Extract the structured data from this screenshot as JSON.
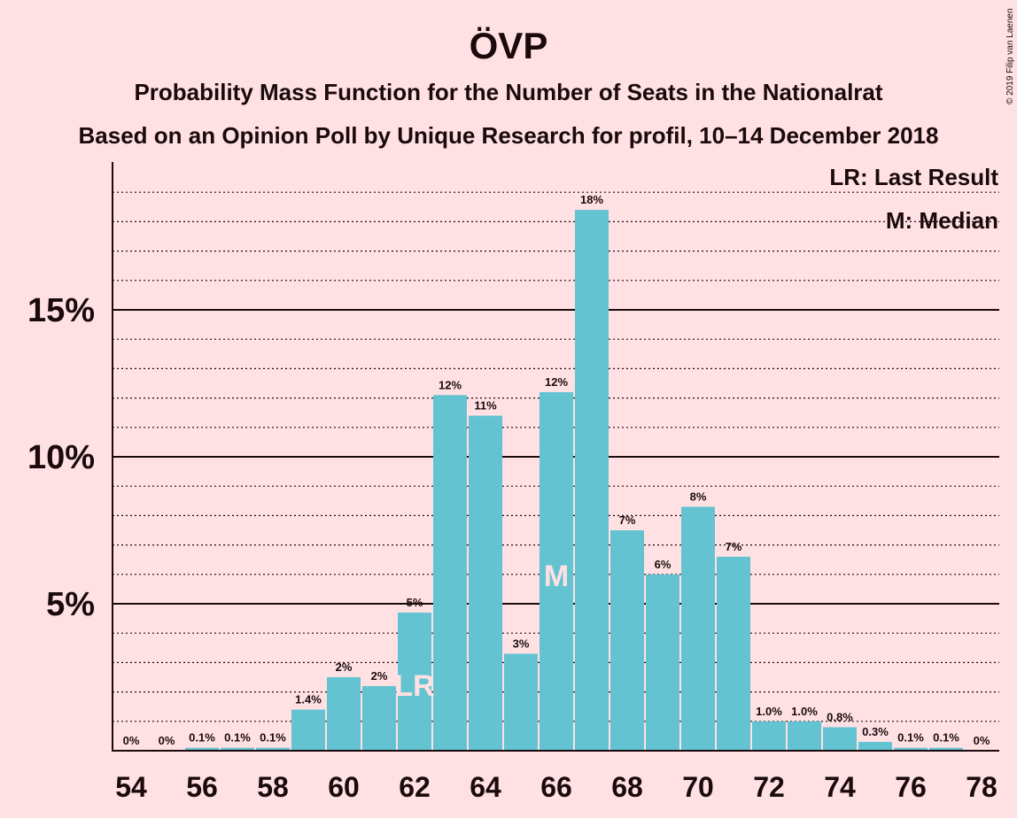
{
  "chart_data": {
    "type": "bar",
    "title": "ÖVP",
    "subtitle_line1": "Probability Mass Function for the Number of Seats in the Nationalrat",
    "subtitle_line2": "Based on an Opinion Poll by Unique Research for profil, 10–14 December 2018",
    "categories": [
      54,
      55,
      56,
      57,
      58,
      59,
      60,
      61,
      62,
      63,
      64,
      65,
      66,
      67,
      68,
      69,
      70,
      71,
      72,
      73,
      74,
      75,
      76,
      77,
      78
    ],
    "values": [
      0,
      0,
      0.1,
      0.1,
      0.1,
      1.4,
      2.5,
      2.2,
      4.7,
      12.1,
      11.4,
      3.3,
      12.2,
      18.4,
      7.5,
      6.0,
      8.3,
      6.6,
      1.0,
      1.0,
      0.8,
      0.3,
      0.1,
      0.1,
      0
    ],
    "value_labels": [
      "0%",
      "0%",
      "0.1%",
      "0.1%",
      "0.1%",
      "1.4%",
      "2%",
      "2%",
      "5%",
      "12%",
      "11%",
      "3%",
      "12%",
      "18%",
      "7%",
      "6%",
      "8%",
      "7%",
      "1.0%",
      "1.0%",
      "0.8%",
      "0.3%",
      "0.1%",
      "0.1%",
      "0%"
    ],
    "x_tick_labels": [
      "54",
      "56",
      "58",
      "60",
      "62",
      "64",
      "66",
      "68",
      "70",
      "72",
      "74",
      "76",
      "78"
    ],
    "x_tick_values": [
      54,
      56,
      58,
      60,
      62,
      64,
      66,
      68,
      70,
      72,
      74,
      76,
      78
    ],
    "y_ticks": [
      5,
      10,
      15
    ],
    "y_tick_labels": [
      "5%",
      "10%",
      "15%"
    ],
    "ylim": [
      0,
      20
    ],
    "minor_grid_step": 1,
    "bar_color": "#64c3d1",
    "last_result": {
      "seat": 62,
      "label": "LR"
    },
    "median": {
      "seat": 66,
      "label": "M"
    },
    "legend": [
      "LR: Last Result",
      "M: Median"
    ],
    "copyright": "© 2019 Filip van Laenen",
    "xlabel": "",
    "ylabel": ""
  }
}
